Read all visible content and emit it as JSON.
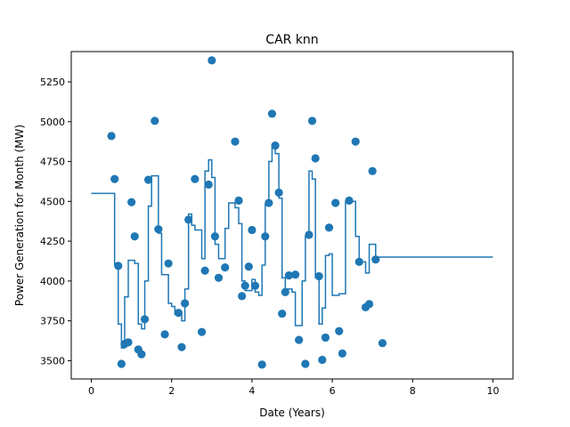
{
  "chart_data": {
    "type": "scatter",
    "title": "CAR knn",
    "xlabel": "Date (Years)",
    "ylabel": "Power Generation for Month (MW)",
    "xlim": [
      -0.5,
      10.5
    ],
    "ylim": [
      3385,
      5440
    ],
    "xticks": [
      0,
      2,
      4,
      6,
      8,
      10
    ],
    "yticks": [
      3500,
      3750,
      4000,
      4250,
      4500,
      4750,
      5000,
      5250
    ],
    "grid": false,
    "color": "#1f77b4",
    "points": [
      [
        0.5,
        4910
      ],
      [
        0.58,
        4640
      ],
      [
        0.67,
        4095
      ],
      [
        0.75,
        3480
      ],
      [
        0.83,
        3605
      ],
      [
        0.92,
        3615
      ],
      [
        1.0,
        4495
      ],
      [
        1.08,
        4280
      ],
      [
        1.17,
        3570
      ],
      [
        1.25,
        3540
      ],
      [
        1.33,
        3760
      ],
      [
        1.42,
        4635
      ],
      [
        1.58,
        5005
      ],
      [
        1.67,
        4325
      ],
      [
        1.83,
        3665
      ],
      [
        1.92,
        4110
      ],
      [
        2.17,
        3800
      ],
      [
        2.25,
        3585
      ],
      [
        2.33,
        3860
      ],
      [
        2.42,
        4385
      ],
      [
        2.58,
        4640
      ],
      [
        2.75,
        3680
      ],
      [
        2.83,
        4065
      ],
      [
        2.92,
        4605
      ],
      [
        3.0,
        5385
      ],
      [
        3.08,
        4280
      ],
      [
        3.17,
        4020
      ],
      [
        3.33,
        4085
      ],
      [
        3.58,
        4875
      ],
      [
        3.67,
        4505
      ],
      [
        3.75,
        3905
      ],
      [
        3.83,
        3970
      ],
      [
        3.92,
        4090
      ],
      [
        4.0,
        4320
      ],
      [
        4.08,
        3970
      ],
      [
        4.25,
        3475
      ],
      [
        4.33,
        4280
      ],
      [
        4.42,
        4490
      ],
      [
        4.5,
        5050
      ],
      [
        4.58,
        4850
      ],
      [
        4.67,
        4555
      ],
      [
        4.75,
        3795
      ],
      [
        4.83,
        3930
      ],
      [
        4.92,
        4035
      ],
      [
        5.08,
        4040
      ],
      [
        5.17,
        3630
      ],
      [
        5.33,
        3480
      ],
      [
        5.42,
        4290
      ],
      [
        5.5,
        5005
      ],
      [
        5.58,
        4770
      ],
      [
        5.67,
        4030
      ],
      [
        5.75,
        3505
      ],
      [
        5.83,
        3645
      ],
      [
        5.92,
        4335
      ],
      [
        6.08,
        4490
      ],
      [
        6.17,
        3685
      ],
      [
        6.25,
        3545
      ],
      [
        6.42,
        4505
      ],
      [
        6.58,
        4875
      ],
      [
        6.67,
        4120
      ],
      [
        6.83,
        3835
      ],
      [
        6.92,
        3855
      ],
      [
        7.0,
        4690
      ],
      [
        7.08,
        4135
      ],
      [
        7.25,
        3610
      ]
    ],
    "series": [
      {
        "type": "line",
        "values": [
          [
            0,
            4550
          ],
          [
            0.58,
            4550
          ],
          [
            0.58,
            4100
          ],
          [
            0.67,
            4100
          ],
          [
            0.67,
            3730
          ],
          [
            0.75,
            3730
          ],
          [
            0.75,
            3580
          ],
          [
            0.83,
            3580
          ],
          [
            0.83,
            3900
          ],
          [
            0.92,
            3900
          ],
          [
            0.92,
            4130
          ],
          [
            1.08,
            4130
          ],
          [
            1.08,
            4110
          ],
          [
            1.17,
            4110
          ],
          [
            1.17,
            3730
          ],
          [
            1.25,
            3730
          ],
          [
            1.25,
            3700
          ],
          [
            1.33,
            3700
          ],
          [
            1.33,
            4000
          ],
          [
            1.42,
            4000
          ],
          [
            1.42,
            4470
          ],
          [
            1.5,
            4470
          ],
          [
            1.5,
            4660
          ],
          [
            1.67,
            4660
          ],
          [
            1.67,
            4300
          ],
          [
            1.75,
            4300
          ],
          [
            1.75,
            4040
          ],
          [
            1.92,
            4040
          ],
          [
            1.92,
            3860
          ],
          [
            2.0,
            3860
          ],
          [
            2.0,
            3840
          ],
          [
            2.08,
            3840
          ],
          [
            2.08,
            3790
          ],
          [
            2.25,
            3790
          ],
          [
            2.25,
            3750
          ],
          [
            2.33,
            3750
          ],
          [
            2.33,
            3950
          ],
          [
            2.42,
            3950
          ],
          [
            2.42,
            4420
          ],
          [
            2.5,
            4420
          ],
          [
            2.5,
            4350
          ],
          [
            2.58,
            4350
          ],
          [
            2.58,
            4320
          ],
          [
            2.75,
            4320
          ],
          [
            2.75,
            4140
          ],
          [
            2.83,
            4140
          ],
          [
            2.83,
            4690
          ],
          [
            2.92,
            4690
          ],
          [
            2.92,
            4760
          ],
          [
            3.0,
            4760
          ],
          [
            3.0,
            4650
          ],
          [
            3.08,
            4650
          ],
          [
            3.08,
            4230
          ],
          [
            3.17,
            4230
          ],
          [
            3.17,
            4140
          ],
          [
            3.33,
            4140
          ],
          [
            3.33,
            4330
          ],
          [
            3.42,
            4330
          ],
          [
            3.42,
            4490
          ],
          [
            3.58,
            4490
          ],
          [
            3.58,
            4460
          ],
          [
            3.67,
            4460
          ],
          [
            3.67,
            4360
          ],
          [
            3.75,
            4360
          ],
          [
            3.75,
            4000
          ],
          [
            3.83,
            4000
          ],
          [
            3.83,
            3940
          ],
          [
            4.0,
            3940
          ],
          [
            4.0,
            4010
          ],
          [
            4.08,
            4010
          ],
          [
            4.08,
            3930
          ],
          [
            4.17,
            3930
          ],
          [
            4.17,
            3910
          ],
          [
            4.25,
            3910
          ],
          [
            4.25,
            4100
          ],
          [
            4.33,
            4100
          ],
          [
            4.33,
            4480
          ],
          [
            4.42,
            4480
          ],
          [
            4.42,
            4750
          ],
          [
            4.5,
            4750
          ],
          [
            4.5,
            4850
          ],
          [
            4.58,
            4850
          ],
          [
            4.58,
            4800
          ],
          [
            4.67,
            4800
          ],
          [
            4.67,
            4520
          ],
          [
            4.75,
            4520
          ],
          [
            4.75,
            4020
          ],
          [
            4.83,
            4020
          ],
          [
            4.83,
            3950
          ],
          [
            5.0,
            3950
          ],
          [
            5.0,
            3930
          ],
          [
            5.08,
            3930
          ],
          [
            5.08,
            3720
          ],
          [
            5.17,
            3720
          ],
          [
            5.17,
            3720
          ],
          [
            5.25,
            3720
          ],
          [
            5.25,
            4000
          ],
          [
            5.33,
            4000
          ],
          [
            5.33,
            4280
          ],
          [
            5.42,
            4280
          ],
          [
            5.42,
            4690
          ],
          [
            5.5,
            4690
          ],
          [
            5.5,
            4640
          ],
          [
            5.58,
            4640
          ],
          [
            5.58,
            4020
          ],
          [
            5.67,
            4020
          ],
          [
            5.67,
            3730
          ],
          [
            5.75,
            3730
          ],
          [
            5.75,
            3830
          ],
          [
            5.83,
            3830
          ],
          [
            5.83,
            4160
          ],
          [
            5.92,
            4160
          ],
          [
            5.92,
            4170
          ],
          [
            6.0,
            4170
          ],
          [
            6.0,
            3910
          ],
          [
            6.17,
            3910
          ],
          [
            6.17,
            3920
          ],
          [
            6.33,
            3920
          ],
          [
            6.33,
            4500
          ],
          [
            6.58,
            4500
          ],
          [
            6.58,
            4280
          ],
          [
            6.67,
            4280
          ],
          [
            6.67,
            4120
          ],
          [
            6.83,
            4120
          ],
          [
            6.83,
            4050
          ],
          [
            6.92,
            4050
          ],
          [
            6.92,
            4230
          ],
          [
            7.08,
            4230
          ],
          [
            7.08,
            4150
          ],
          [
            10.0,
            4150
          ]
        ]
      }
    ]
  }
}
